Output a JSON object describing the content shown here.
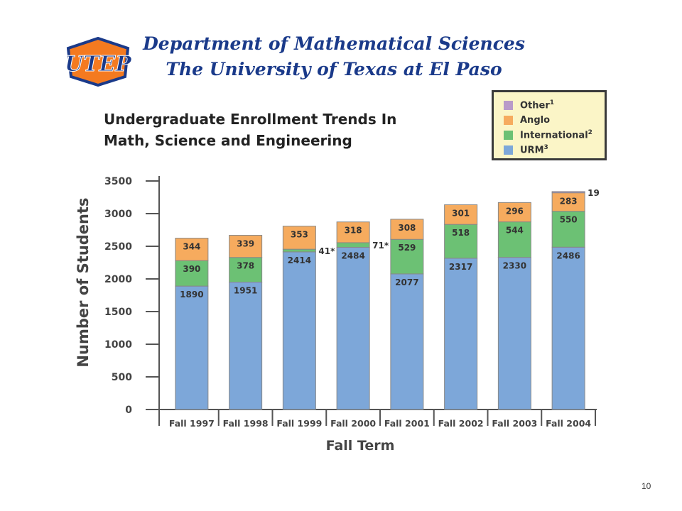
{
  "header": {
    "title_line1": "Department of Mathematical Sciences",
    "title_line2": "The University of Texas at El Paso",
    "logo_text": "UTEP"
  },
  "slide_number": "10",
  "colors": {
    "urm": "#7da7d9",
    "international": "#6cc174",
    "anglo": "#f6ab5e",
    "other": "#b99ac9",
    "title": "#1a3a8a"
  },
  "chart_data": {
    "type": "bar",
    "stacked": true,
    "title_line1": "Undergraduate Enrollment Trends In",
    "title_line2": "Math, Science and Engineering",
    "xlabel": "Fall Term",
    "ylabel": "Number of Students",
    "ylim": [
      0,
      3500
    ],
    "yticks": [
      0,
      500,
      1000,
      1500,
      2000,
      2500,
      3000,
      3500
    ],
    "categories": [
      "Fall 1997",
      "Fall 1998",
      "Fall 1999",
      "Fall 2000",
      "Fall 2001",
      "Fall 2002",
      "Fall 2003",
      "Fall 2004"
    ],
    "legend": {
      "position": "top-right",
      "entries": [
        {
          "label": "Other",
          "sup": "1",
          "key": "other"
        },
        {
          "label": "Anglo",
          "sup": "",
          "key": "anglo"
        },
        {
          "label": "International",
          "sup": "2",
          "key": "international"
        },
        {
          "label": "URM",
          "sup": "3",
          "key": "urm"
        }
      ]
    },
    "series": [
      {
        "name": "URM",
        "key": "urm",
        "values": [
          1890,
          1951,
          2414,
          2484,
          2077,
          2317,
          2330,
          2486
        ],
        "labels": [
          "1890",
          "1951",
          "2414",
          "2484",
          "2077",
          "2317",
          "2330",
          "2486"
        ]
      },
      {
        "name": "International",
        "key": "international",
        "values": [
          390,
          378,
          41,
          71,
          529,
          518,
          544,
          550
        ],
        "labels": [
          "390",
          "378",
          "41*",
          "71*",
          "529",
          "518",
          "544",
          "550"
        ]
      },
      {
        "name": "Anglo",
        "key": "anglo",
        "values": [
          344,
          339,
          353,
          318,
          308,
          301,
          296,
          283
        ],
        "labels": [
          "344",
          "339",
          "353",
          "318",
          "308",
          "301",
          "296",
          "283"
        ]
      },
      {
        "name": "Other",
        "key": "other",
        "values": [
          0,
          0,
          0,
          0,
          0,
          0,
          0,
          19
        ],
        "labels": [
          "",
          "",
          "",
          "",
          "",
          "",
          "",
          "19"
        ]
      }
    ]
  }
}
